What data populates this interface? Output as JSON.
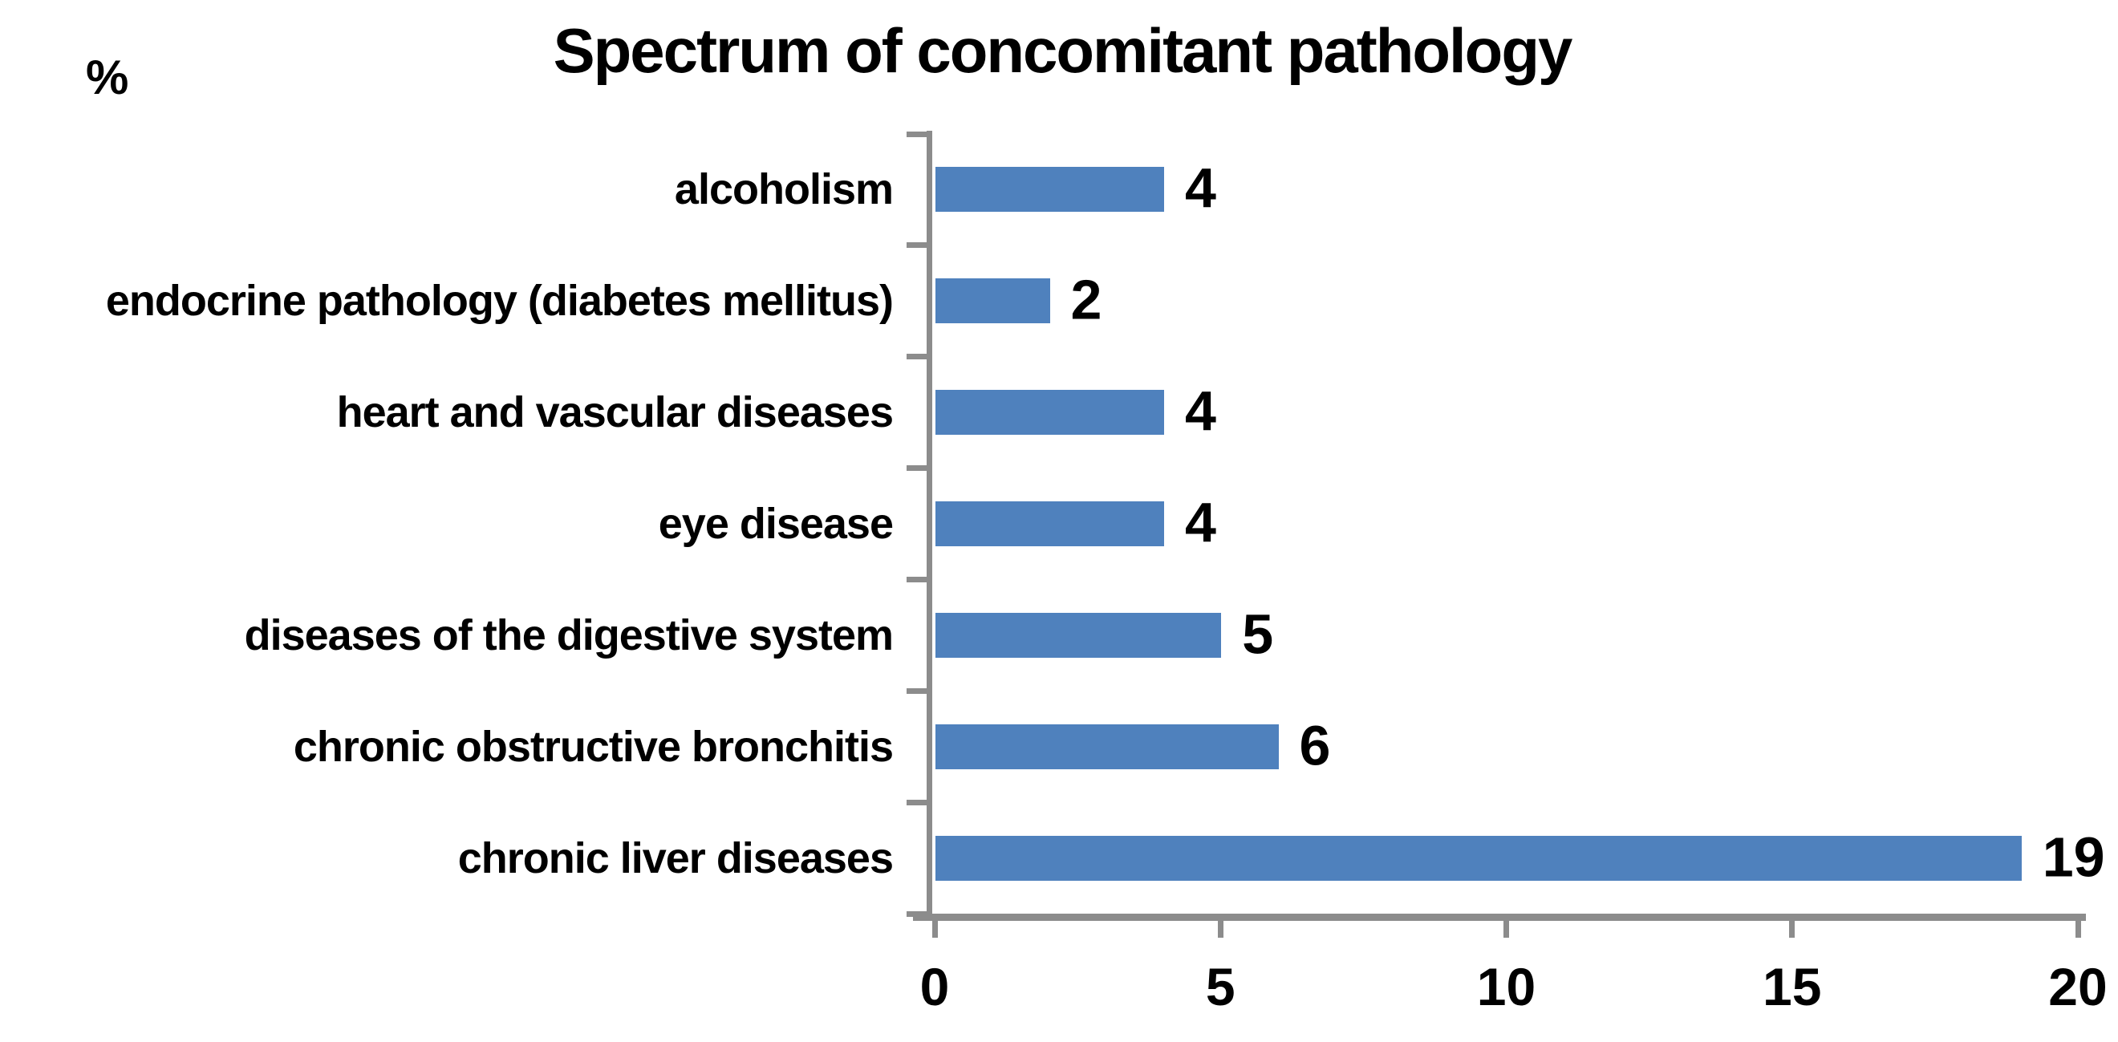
{
  "chart_data": {
    "type": "bar",
    "orientation": "horizontal",
    "title": "Spectrum of concomitant pathology",
    "ylabel": "%",
    "xlabel": "",
    "categories": [
      "alcoholism",
      "endocrine pathology (diabetes mellitus)",
      "heart and vascular diseases",
      "eye disease",
      "diseases of the digestive system",
      "chronic obstructive bronchitis",
      "chronic liver diseases"
    ],
    "values": [
      4,
      2,
      4,
      4,
      5,
      6,
      19
    ],
    "data_labels": [
      "4",
      "2",
      "4",
      "4",
      "5",
      "6",
      "19"
    ],
    "xlim": [
      0,
      20
    ],
    "xticks": [
      0,
      5,
      10,
      15,
      20
    ],
    "grid": "off",
    "legend": "none",
    "bar_color": "#4f81bd",
    "axis_color": "#8c8c8c",
    "text_color": "#000000"
  }
}
